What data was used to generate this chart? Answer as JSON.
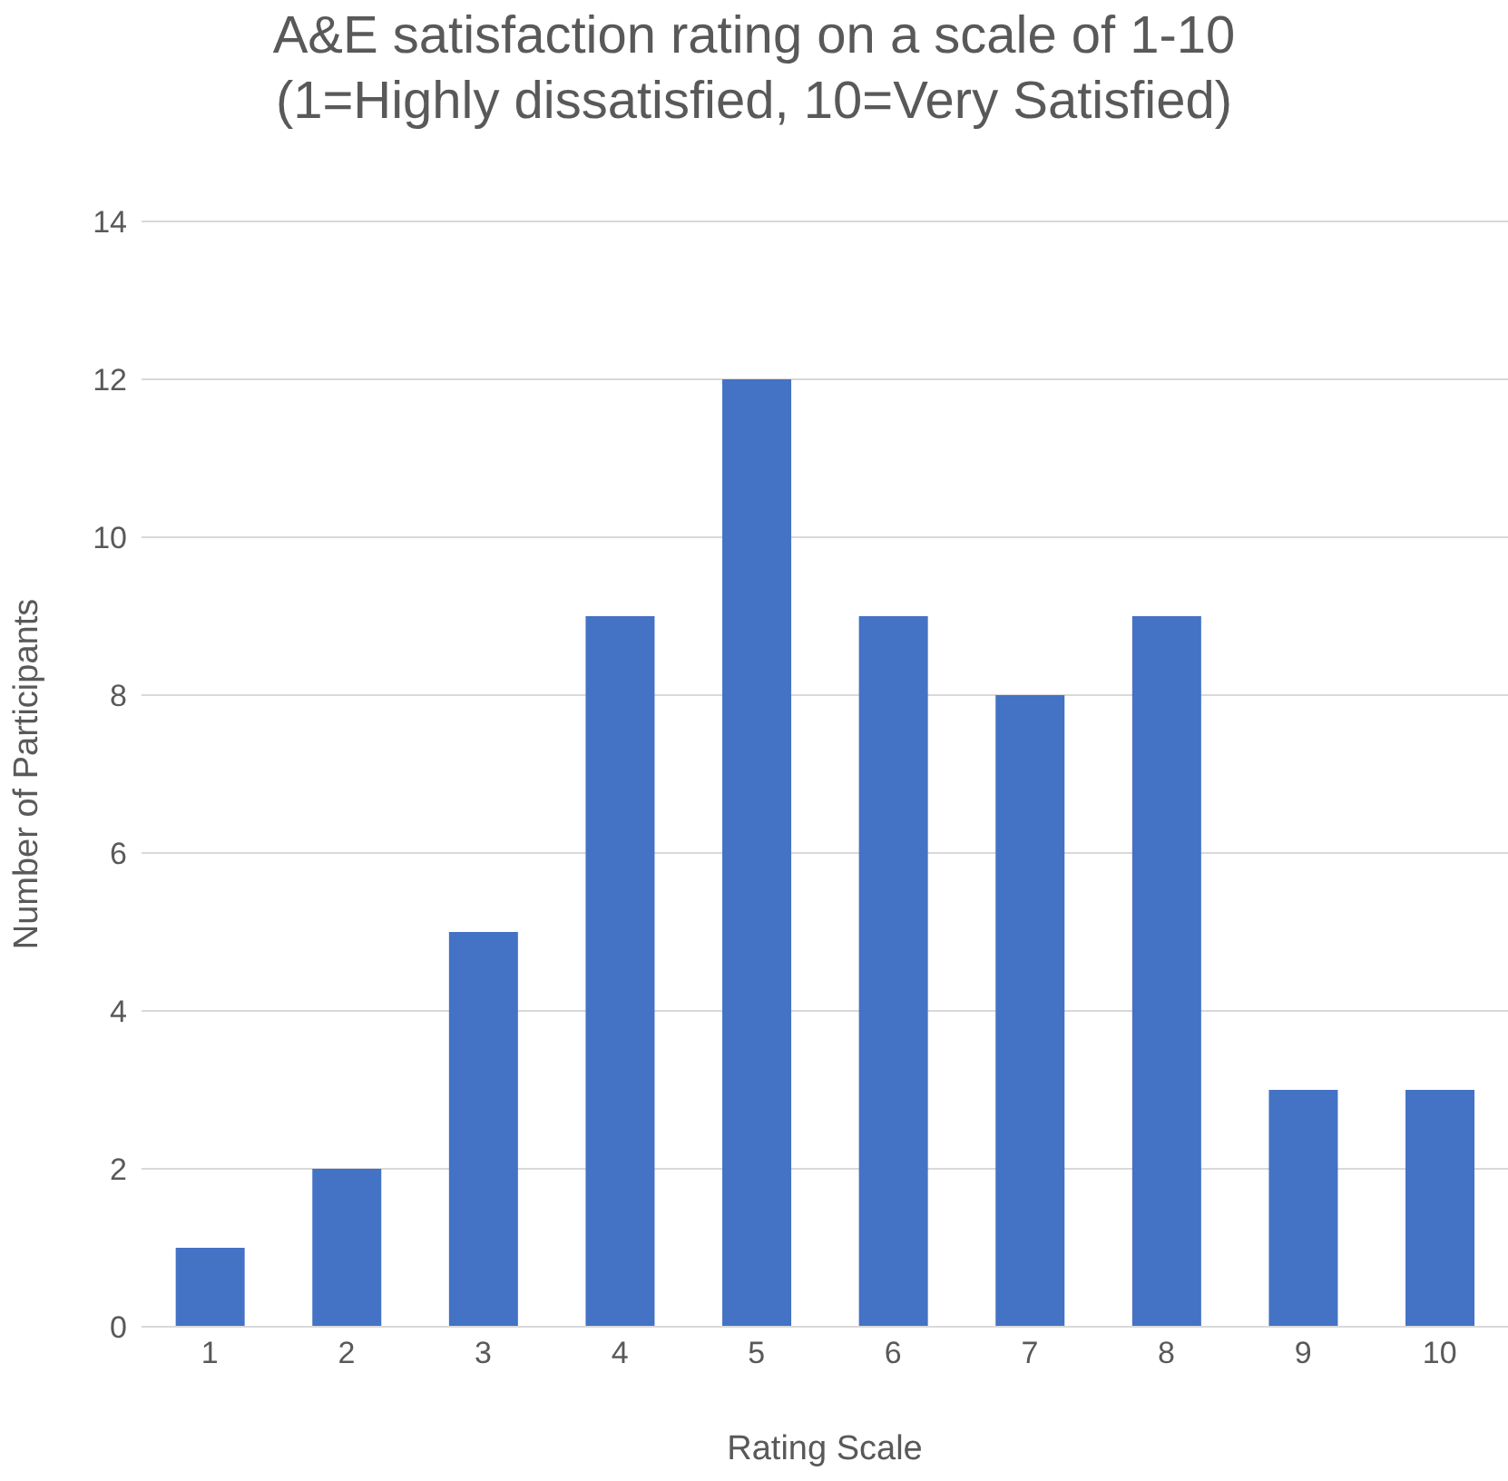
{
  "chart_data": {
    "type": "bar",
    "title": "A&E satisfaction rating on a scale of 1-10\n(1=Highly dissatisfied, 10=Very Satisfied)",
    "xlabel": "Rating Scale",
    "ylabel": "Number of Participants",
    "categories": [
      "1",
      "2",
      "3",
      "4",
      "5",
      "6",
      "7",
      "8",
      "9",
      "10"
    ],
    "values": [
      1,
      2,
      5,
      9,
      12,
      9,
      8,
      9,
      3,
      3
    ],
    "color": "#4472c4",
    "ylim": [
      0,
      14
    ],
    "yticks": [
      0,
      2,
      4,
      6,
      8,
      10,
      12,
      14
    ],
    "grid": "y",
    "legend": false
  }
}
